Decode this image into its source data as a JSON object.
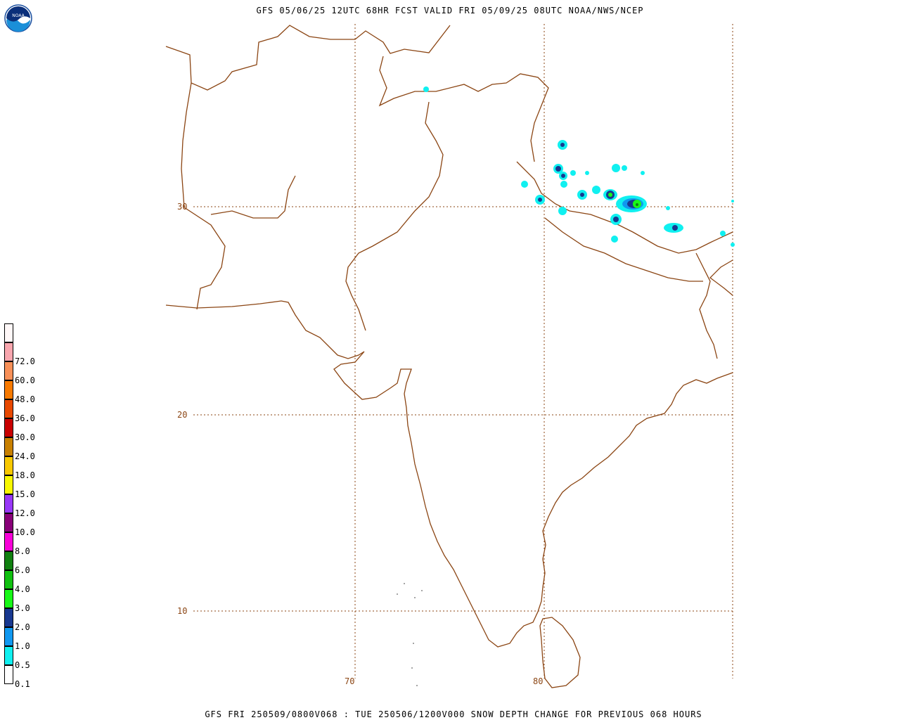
{
  "title": "GFS 05/06/25 12UTC 68HR FCST VALID FRI 05/09/25 08UTC NOAA/NWS/NCEP",
  "footer": "GFS FRI 250509/0800V068 : TUE 250506/1200V000 SNOW DEPTH CHANGE FOR PREVIOUS 068 HOURS",
  "logo_text": "NOAA",
  "colors": {
    "coast": "#8b4513",
    "grid": "#8b4513"
  },
  "lat_labels": [
    "30",
    "20",
    "10"
  ],
  "lon_labels": [
    "70",
    "80"
  ],
  "legend": [
    {
      "label": "",
      "color": "#fff8f8"
    },
    {
      "label": "72.0",
      "color": "#f8a6ae"
    },
    {
      "label": "60.0",
      "color": "#f89058"
    },
    {
      "label": "48.0",
      "color": "#f87a00"
    },
    {
      "label": "36.0",
      "color": "#e84800"
    },
    {
      "label": "30.0",
      "color": "#c80000"
    },
    {
      "label": "24.0",
      "color": "#c88000"
    },
    {
      "label": "18.0",
      "color": "#f8c800"
    },
    {
      "label": "15.0",
      "color": "#f8f800"
    },
    {
      "label": "12.0",
      "color": "#9838f8"
    },
    {
      "label": "10.0",
      "color": "#880078"
    },
    {
      "label": "8.0",
      "color": "#f800d8"
    },
    {
      "label": "6.0",
      "color": "#108010"
    },
    {
      "label": "4.0",
      "color": "#10c010"
    },
    {
      "label": "3.0",
      "color": "#18f818"
    },
    {
      "label": "2.0",
      "color": "#183890"
    },
    {
      "label": "1.0",
      "color": "#1098f0"
    },
    {
      "label": "0.5",
      "color": "#10f0f0"
    },
    {
      "label": "0.1",
      "color": "#ffffff"
    }
  ]
}
